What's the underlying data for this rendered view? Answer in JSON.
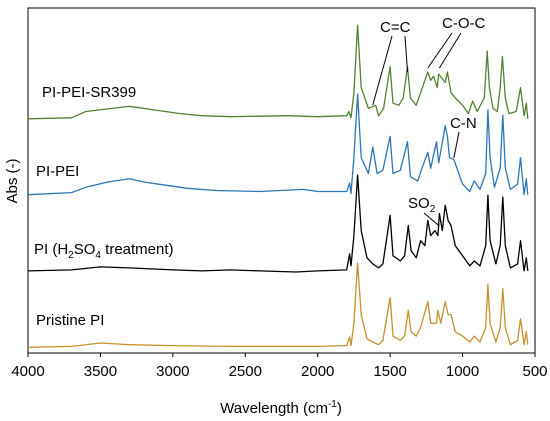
{
  "chart_data": {
    "type": "line",
    "title": "",
    "xlabel_main": "Wavelength (cm",
    "xlabel_sup": "-1",
    "xlabel_end": ")",
    "ylabel": "Abs (-)",
    "x_reversed": true,
    "xlim": [
      4000,
      500
    ],
    "xticks": [
      4000,
      3500,
      3000,
      2500,
      2000,
      1500,
      1000,
      500
    ],
    "grid": false,
    "legend": "none",
    "y_ticks_shown": false,
    "series": [
      {
        "name": "PI-PEI-SR399",
        "color": "#538135",
        "points": [
          [
            4000,
            0.05
          ],
          [
            3700,
            0.06
          ],
          [
            3600,
            0.12
          ],
          [
            3300,
            0.17
          ],
          [
            3100,
            0.13
          ],
          [
            2950,
            0.1
          ],
          [
            2800,
            0.08
          ],
          [
            2600,
            0.07
          ],
          [
            2200,
            0.08
          ],
          [
            2000,
            0.07
          ],
          [
            1800,
            0.08
          ],
          [
            1785,
            0.12
          ],
          [
            1770,
            0.06
          ],
          [
            1750,
            0.3
          ],
          [
            1725,
            0.95
          ],
          [
            1700,
            0.35
          ],
          [
            1650,
            0.15
          ],
          [
            1600,
            0.18
          ],
          [
            1580,
            0.08
          ],
          [
            1545,
            0.15
          ],
          [
            1500,
            0.55
          ],
          [
            1480,
            0.2
          ],
          [
            1440,
            0.18
          ],
          [
            1410,
            0.25
          ],
          [
            1380,
            0.55
          ],
          [
            1360,
            0.25
          ],
          [
            1320,
            0.18
          ],
          [
            1290,
            0.3
          ],
          [
            1240,
            0.5
          ],
          [
            1220,
            0.42
          ],
          [
            1200,
            0.46
          ],
          [
            1175,
            0.35
          ],
          [
            1165,
            0.48
          ],
          [
            1120,
            0.4
          ],
          [
            1105,
            0.5
          ],
          [
            1080,
            0.3
          ],
          [
            1050,
            0.25
          ],
          [
            1000,
            0.18
          ],
          [
            960,
            0.1
          ],
          [
            930,
            0.22
          ],
          [
            900,
            0.12
          ],
          [
            850,
            0.25
          ],
          [
            830,
            0.7
          ],
          [
            815,
            0.35
          ],
          [
            790,
            0.15
          ],
          [
            760,
            0.12
          ],
          [
            740,
            0.35
          ],
          [
            725,
            0.65
          ],
          [
            705,
            0.25
          ],
          [
            680,
            0.1
          ],
          [
            630,
            0.12
          ],
          [
            600,
            0.35
          ],
          [
            575,
            0.08
          ],
          [
            560,
            0.2
          ],
          [
            550,
            0.05
          ]
        ]
      },
      {
        "name": "PI-PEI",
        "color": "#2e75b6",
        "points": [
          [
            4000,
            0.05
          ],
          [
            3700,
            0.07
          ],
          [
            3600,
            0.12
          ],
          [
            3450,
            0.17
          ],
          [
            3300,
            0.2
          ],
          [
            3200,
            0.17
          ],
          [
            3050,
            0.14
          ],
          [
            2900,
            0.11
          ],
          [
            2700,
            0.09
          ],
          [
            2400,
            0.08
          ],
          [
            2100,
            0.1
          ],
          [
            2000,
            0.08
          ],
          [
            1800,
            0.08
          ],
          [
            1780,
            0.16
          ],
          [
            1770,
            0.06
          ],
          [
            1750,
            0.4
          ],
          [
            1725,
            1.0
          ],
          [
            1700,
            0.4
          ],
          [
            1650,
            0.25
          ],
          [
            1620,
            0.5
          ],
          [
            1590,
            0.25
          ],
          [
            1550,
            0.28
          ],
          [
            1500,
            0.6
          ],
          [
            1480,
            0.25
          ],
          [
            1430,
            0.28
          ],
          [
            1380,
            0.55
          ],
          [
            1360,
            0.22
          ],
          [
            1310,
            0.18
          ],
          [
            1280,
            0.3
          ],
          [
            1240,
            0.45
          ],
          [
            1220,
            0.3
          ],
          [
            1180,
            0.55
          ],
          [
            1165,
            0.35
          ],
          [
            1120,
            0.7
          ],
          [
            1105,
            0.6
          ],
          [
            1090,
            0.4
          ],
          [
            1060,
            0.38
          ],
          [
            1000,
            0.15
          ],
          [
            950,
            0.08
          ],
          [
            920,
            0.18
          ],
          [
            880,
            0.1
          ],
          [
            840,
            0.25
          ],
          [
            825,
            0.85
          ],
          [
            810,
            0.4
          ],
          [
            780,
            0.12
          ],
          [
            740,
            0.3
          ],
          [
            722,
            0.8
          ],
          [
            705,
            0.3
          ],
          [
            670,
            0.1
          ],
          [
            620,
            0.15
          ],
          [
            600,
            0.4
          ],
          [
            575,
            0.05
          ],
          [
            560,
            0.2
          ],
          [
            550,
            0.05
          ]
        ]
      },
      {
        "name": "PI (H2SO4 treatment)",
        "color": "#000000",
        "points": [
          [
            4000,
            0.05
          ],
          [
            3700,
            0.06
          ],
          [
            3500,
            0.09
          ],
          [
            3300,
            0.08
          ],
          [
            3000,
            0.06
          ],
          [
            2800,
            0.05
          ],
          [
            2600,
            0.06
          ],
          [
            2400,
            0.05
          ],
          [
            2150,
            0.04
          ],
          [
            2000,
            0.05
          ],
          [
            1800,
            0.06
          ],
          [
            1780,
            0.22
          ],
          [
            1770,
            0.1
          ],
          [
            1750,
            0.4
          ],
          [
            1725,
            1.0
          ],
          [
            1700,
            0.45
          ],
          [
            1660,
            0.18
          ],
          [
            1620,
            0.12
          ],
          [
            1580,
            0.08
          ],
          [
            1550,
            0.12
          ],
          [
            1500,
            0.6
          ],
          [
            1480,
            0.2
          ],
          [
            1430,
            0.15
          ],
          [
            1400,
            0.2
          ],
          [
            1375,
            0.5
          ],
          [
            1355,
            0.25
          ],
          [
            1320,
            0.18
          ],
          [
            1290,
            0.35
          ],
          [
            1260,
            0.3
          ],
          [
            1240,
            0.55
          ],
          [
            1220,
            0.4
          ],
          [
            1190,
            0.45
          ],
          [
            1170,
            0.4
          ],
          [
            1160,
            0.62
          ],
          [
            1140,
            0.45
          ],
          [
            1120,
            0.7
          ],
          [
            1100,
            0.55
          ],
          [
            1080,
            0.5
          ],
          [
            1050,
            0.3
          ],
          [
            1000,
            0.2
          ],
          [
            950,
            0.1
          ],
          [
            920,
            0.15
          ],
          [
            880,
            0.1
          ],
          [
            840,
            0.3
          ],
          [
            825,
            0.8
          ],
          [
            810,
            0.35
          ],
          [
            770,
            0.12
          ],
          [
            740,
            0.3
          ],
          [
            722,
            0.78
          ],
          [
            705,
            0.3
          ],
          [
            670,
            0.08
          ],
          [
            620,
            0.12
          ],
          [
            600,
            0.35
          ],
          [
            575,
            0.05
          ],
          [
            560,
            0.18
          ],
          [
            550,
            0.05
          ]
        ]
      },
      {
        "name": "Pristine PI",
        "color": "#c5902f",
        "points": [
          [
            4000,
            0.02
          ],
          [
            3700,
            0.03
          ],
          [
            3500,
            0.07
          ],
          [
            3300,
            0.05
          ],
          [
            3000,
            0.04
          ],
          [
            2600,
            0.03
          ],
          [
            2200,
            0.03
          ],
          [
            2000,
            0.03
          ],
          [
            1800,
            0.04
          ],
          [
            1780,
            0.14
          ],
          [
            1770,
            0.04
          ],
          [
            1750,
            0.3
          ],
          [
            1725,
            1.0
          ],
          [
            1700,
            0.4
          ],
          [
            1660,
            0.12
          ],
          [
            1620,
            0.08
          ],
          [
            1580,
            0.05
          ],
          [
            1550,
            0.1
          ],
          [
            1500,
            0.6
          ],
          [
            1480,
            0.15
          ],
          [
            1430,
            0.1
          ],
          [
            1400,
            0.15
          ],
          [
            1375,
            0.45
          ],
          [
            1355,
            0.2
          ],
          [
            1320,
            0.15
          ],
          [
            1290,
            0.25
          ],
          [
            1240,
            0.55
          ],
          [
            1220,
            0.3
          ],
          [
            1180,
            0.3
          ],
          [
            1170,
            0.45
          ],
          [
            1150,
            0.3
          ],
          [
            1120,
            0.55
          ],
          [
            1100,
            0.4
          ],
          [
            1080,
            0.4
          ],
          [
            1050,
            0.2
          ],
          [
            1000,
            0.15
          ],
          [
            950,
            0.08
          ],
          [
            920,
            0.15
          ],
          [
            880,
            0.08
          ],
          [
            840,
            0.25
          ],
          [
            825,
            0.75
          ],
          [
            810,
            0.3
          ],
          [
            770,
            0.08
          ],
          [
            740,
            0.25
          ],
          [
            722,
            0.7
          ],
          [
            705,
            0.25
          ],
          [
            670,
            0.05
          ],
          [
            620,
            0.1
          ],
          [
            600,
            0.35
          ],
          [
            575,
            0.05
          ],
          [
            560,
            0.2
          ],
          [
            550,
            0.05
          ]
        ]
      }
    ],
    "series_labels": [
      {
        "text_main": "PI-PEI-SR399"
      },
      {
        "text_main": "PI-PEI"
      },
      {
        "text_main": "PI (H",
        "sub1": "2",
        "mid": "SO",
        "sub2": "4",
        "tail": " treatment)"
      },
      {
        "text_main": "Pristine PI"
      }
    ],
    "annotations": [
      {
        "text": "C=C",
        "targets": [
          1620,
          1380
        ]
      },
      {
        "text": "C-O-C",
        "targets": [
          1240,
          1160
        ]
      },
      {
        "text": "C-N",
        "targets": [
          1060
        ]
      },
      {
        "text_main": "SO",
        "sub": "2",
        "targets": [
          1160
        ]
      }
    ]
  }
}
